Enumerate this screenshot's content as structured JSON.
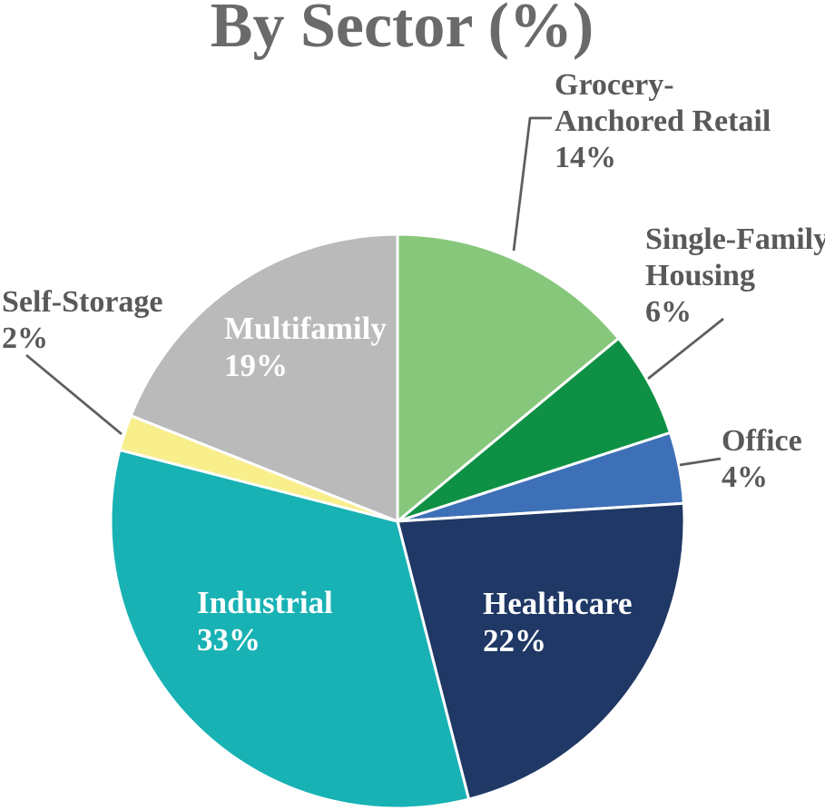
{
  "title": "By Sector (%)",
  "colors": {
    "background": "#FFFFFF",
    "title_text": "#6A6A6A",
    "label_text": "#595959",
    "inner_label_text": "#FFFFFF",
    "leader_line": "#5E5E5E",
    "slice_border": "#FFFFFF"
  },
  "chart_data": {
    "type": "pie",
    "title": "By Sector (%)",
    "unit": "percent",
    "total": 100,
    "start_angle_deg": 0,
    "direction": "clockwise",
    "legend": "none",
    "segments": [
      {
        "label": "Grocery-Anchored Retail",
        "value": 14,
        "value_label": "14%",
        "color": "#87C77B",
        "label_placement": "outside-callout"
      },
      {
        "label": "Single-Family Housing",
        "value": 6,
        "value_label": "6%",
        "color": "#0E9145",
        "label_placement": "outside-callout"
      },
      {
        "label": "Office",
        "value": 4,
        "value_label": "4%",
        "color": "#3D70B7",
        "label_placement": "outside-callout"
      },
      {
        "label": "Healthcare",
        "value": 22,
        "value_label": "22%",
        "color": "#1F3865",
        "label_placement": "inside"
      },
      {
        "label": "Industrial",
        "value": 33,
        "value_label": "33%",
        "color": "#18B2B4",
        "label_placement": "inside"
      },
      {
        "label": "Self-Storage",
        "value": 2,
        "value_label": "2%",
        "color": "#F8EE8C",
        "label_placement": "outside-callout"
      },
      {
        "label": "Multifamily",
        "value": 19,
        "value_label": "19%",
        "color": "#BABABA",
        "label_placement": "inside"
      }
    ]
  }
}
